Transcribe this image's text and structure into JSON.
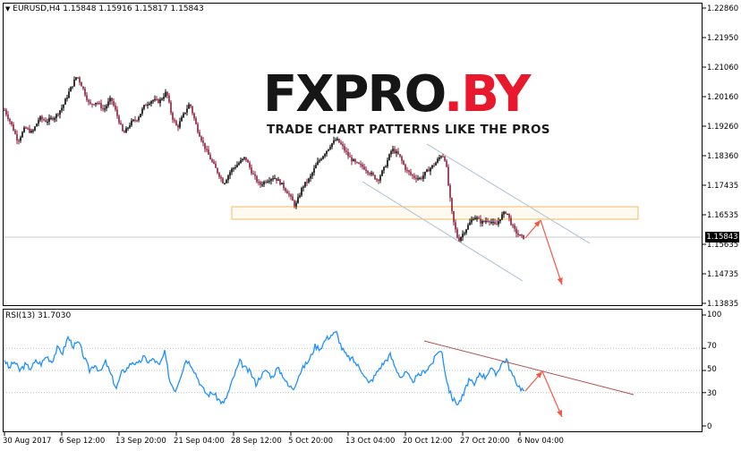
{
  "chart_header": {
    "symbol_timeframe": "EURUSD,H4",
    "ohlc": "1.15848 1.15916 1.15817 1.15843"
  },
  "rsi_header": "RSI(13) 31.7030",
  "price_axis": [
    "1.22860",
    "1.21950",
    "1.21060",
    "1.20160",
    "1.19260",
    "1.18360",
    "1.17435",
    "1.16535",
    "1.15635",
    "1.14735",
    "1.13835"
  ],
  "current_price": "1.15843",
  "rsi_axis": [
    "100",
    "70",
    "50",
    "30",
    "0"
  ],
  "time_axis": [
    "30 Aug 2017",
    "6 Sep 12:00",
    "13 Sep 20:00",
    "21 Sep 04:00",
    "28 Sep 12:00",
    "5 Oct 20:00",
    "13 Oct 04:00",
    "20 Oct 12:00",
    "27 Oct 20:00",
    "6 Nov 04:00"
  ],
  "watermark": {
    "logo_text_fx": "FXPRO",
    "logo_text_by": ".BY",
    "tagline": "TRADE CHART PATTERNS LIKE THE PROS"
  },
  "colors": {
    "bull_candle": "#000000",
    "bear_candle": "#8b1a3a",
    "channel": "#b9c8d6",
    "zone": "#f0b86a",
    "arrow": "#f05a46",
    "rsi_line": "#1e90ff",
    "rsi_trend": "#b05050",
    "logo_red": "#e8192c"
  },
  "chart_data": {
    "type": "candlestick",
    "series": [
      {
        "name": "EURUSD,H4"
      }
    ],
    "ylim": [
      1.13835,
      1.2286
    ],
    "close_points": [
      [
        "30 Aug 2017",
        1.197
      ],
      [
        "6 Sep 12:00",
        1.204
      ],
      [
        "13 Sep 20:00",
        1.192
      ],
      [
        "21 Sep 04:00",
        1.195
      ],
      [
        "28 Sep 12:00",
        1.176
      ],
      [
        "5 Oct 20:00",
        1.177
      ],
      [
        "13 Oct 04:00",
        1.182
      ],
      [
        "20 Oct 12:00",
        1.18
      ],
      [
        "27 Oct 20:00",
        1.164
      ],
      [
        "6 Nov 04:00",
        1.15843
      ]
    ],
    "rsi": {
      "period": 13,
      "value": 31.703,
      "ylim": [
        0,
        100
      ],
      "levels": [
        70,
        50,
        30
      ]
    }
  }
}
